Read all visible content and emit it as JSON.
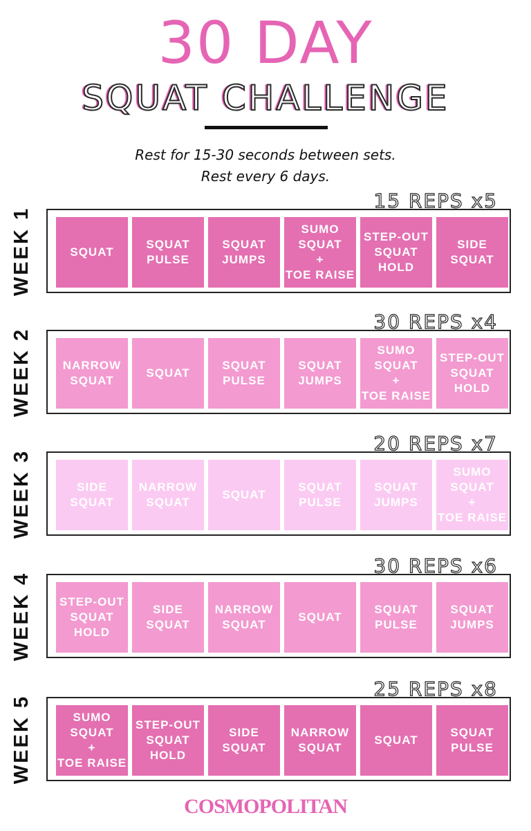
{
  "title": "30 DAY",
  "subtitle": "SQUAT CHALLENGE",
  "notes": [
    "Rest for 15-30 seconds between sets.",
    "Rest every 6 days."
  ],
  "weeks": [
    {
      "label": "WEEK 1",
      "reps": "15 REPS x5",
      "color": "#e46fb1",
      "cells": [
        "SQUAT",
        "SQUAT\nPULSE",
        "SQUAT\nJUMPS",
        "SUMO\nSQUAT\n+\nTOE RAISE",
        "STEP-OUT\nSQUAT\nHOLD",
        "SIDE\nSQUAT"
      ]
    },
    {
      "label": "WEEK 2",
      "reps": "30 REPS x4",
      "color": "#f39ad0",
      "cells": [
        "NARROW\nSQUAT",
        "SQUAT",
        "SQUAT\nPULSE",
        "SQUAT\nJUMPS",
        "SUMO\nSQUAT\n+\nTOE RAISE",
        "STEP-OUT\nSQUAT\nHOLD"
      ]
    },
    {
      "label": "WEEK 3",
      "reps": "20 REPS x7",
      "color": "#fbcaf2",
      "cells": [
        "SIDE\nSQUAT",
        "NARROW\nSQUAT",
        "SQUAT",
        "SQUAT\nPULSE",
        "SQUAT\nJUMPS",
        "SUMO\nSQUAT\n+\nTOE RAISE"
      ]
    },
    {
      "label": "WEEK 4",
      "reps": "30 REPS x6",
      "color": "#f39ad0",
      "cells": [
        "STEP-OUT\nSQUAT\nHOLD",
        "SIDE\nSQUAT",
        "NARROW\nSQUAT",
        "SQUAT",
        "SQUAT\nPULSE",
        "SQUAT\nJUMPS"
      ]
    },
    {
      "label": "WEEK 5",
      "reps": "25 REPS x8",
      "color": "#e46fb1",
      "cells": [
        "SUMO\nSQUAT\n+\nTOE RAISE",
        "STEP-OUT\nSQUAT\nHOLD",
        "SIDE\nSQUAT",
        "NARROW\nSQUAT",
        "SQUAT",
        "SQUAT\nPULSE"
      ]
    }
  ],
  "logo": "COSMOPOLITAN"
}
